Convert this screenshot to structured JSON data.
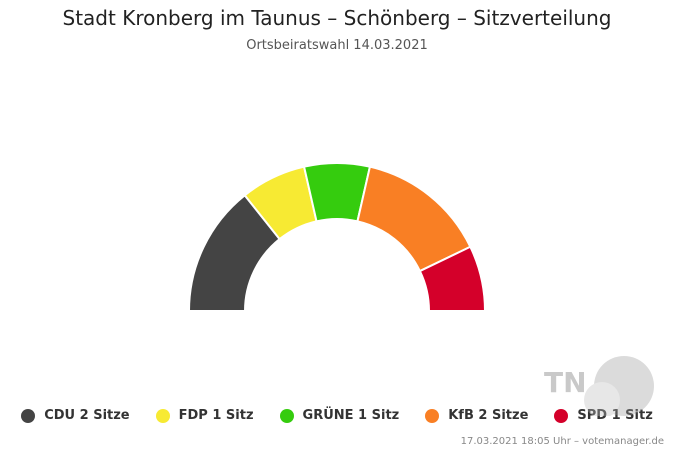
{
  "chart_data": {
    "type": "parliament",
    "title": "Stadt Kronberg im Taunus – Schönberg – Sitzverteilung",
    "subtitle": "Ortsbeiratswahl 14.03.2021",
    "series": [
      {
        "name": "CDU",
        "seats": 2,
        "color": "#444444",
        "legend": "CDU 2 Sitze"
      },
      {
        "name": "FDP",
        "seats": 1,
        "color": "#f7ea33",
        "legend": "FDP 1 Sitz"
      },
      {
        "name": "GRÜNE",
        "seats": 1,
        "color": "#35cc0e",
        "legend": "GRÜNE 1 Sitz"
      },
      {
        "name": "KfB",
        "seats": 2,
        "color": "#f97f24",
        "legend": "KfB 2 Sitze"
      },
      {
        "name": "SPD",
        "seats": 1,
        "color": "#d4002a",
        "legend": "SPD 1 Sitz"
      }
    ],
    "legend_position": "bottom"
  },
  "credits": "17.03.2021 18:05 Uhr – votemanager.de",
  "watermark": "TN"
}
